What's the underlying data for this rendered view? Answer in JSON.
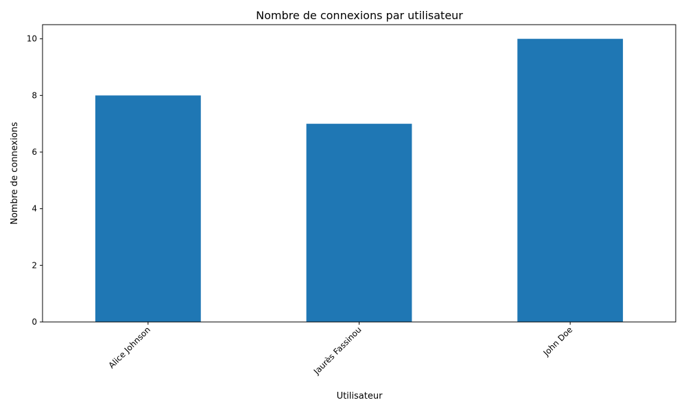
{
  "chart_data": {
    "type": "bar",
    "title": "Nombre de connexions par utilisateur",
    "xlabel": "Utilisateur",
    "ylabel": "Nombre de connexions",
    "categories": [
      "Alice Johnson",
      "Jaurès Fassinou",
      "John Doe"
    ],
    "values": [
      8,
      7,
      10
    ],
    "ylim": [
      0,
      10.5
    ],
    "yticks": [
      0,
      2,
      4,
      6,
      8,
      10
    ],
    "grid": false,
    "legend": "none",
    "bar_color": "#1f77b4",
    "x_tick_rotation_deg": 45
  }
}
